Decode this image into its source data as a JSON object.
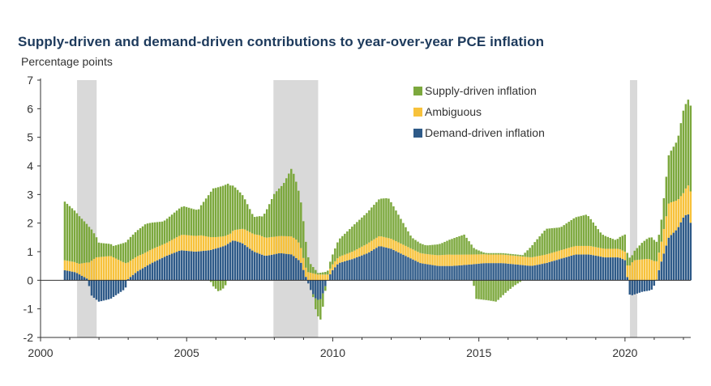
{
  "chart_data": {
    "type": "bar",
    "stacked": true,
    "title": "Supply-driven and demand-driven contributions to year-over-year PCE inflation",
    "ylabel": "Percentage points",
    "xlabel": "",
    "ylim": [
      -2,
      7
    ],
    "xlim": [
      2000,
      2022.25
    ],
    "yticks": [
      7,
      6,
      5,
      4,
      3,
      2,
      1,
      0,
      -1,
      -2
    ],
    "xticks": [
      2000,
      2005,
      2010,
      2015,
      2020
    ],
    "grid": false,
    "legend": "top-right",
    "recessions": [
      [
        2001.25,
        2001.92
      ],
      [
        2007.97,
        2009.5
      ],
      [
        2020.17,
        2020.42
      ]
    ],
    "frequency": "monthly",
    "start": 2000.83,
    "series": [
      {
        "name": "Demand-driven inflation",
        "color": "#2e5a88",
        "anchors": [
          [
            2000.83,
            0.35
          ],
          [
            2001.2,
            0.28
          ],
          [
            2001.6,
            0.05
          ],
          [
            2001.75,
            -0.55
          ],
          [
            2002.0,
            -0.75
          ],
          [
            2002.4,
            -0.65
          ],
          [
            2002.9,
            -0.3
          ],
          [
            2003.0,
            0.05
          ],
          [
            2003.3,
            0.3
          ],
          [
            2003.8,
            0.6
          ],
          [
            2004.3,
            0.85
          ],
          [
            2004.8,
            1.05
          ],
          [
            2005.3,
            1.0
          ],
          [
            2005.8,
            1.05
          ],
          [
            2006.3,
            1.2
          ],
          [
            2006.6,
            1.4
          ],
          [
            2006.9,
            1.3
          ],
          [
            2007.3,
            1.0
          ],
          [
            2007.7,
            0.85
          ],
          [
            2008.2,
            0.95
          ],
          [
            2008.6,
            0.9
          ],
          [
            2008.9,
            0.65
          ],
          [
            2009.05,
            0.2
          ],
          [
            2009.25,
            -0.35
          ],
          [
            2009.45,
            -0.7
          ],
          [
            2009.6,
            -0.65
          ],
          [
            2009.75,
            -0.2
          ],
          [
            2009.95,
            0.3
          ],
          [
            2010.2,
            0.6
          ],
          [
            2010.7,
            0.75
          ],
          [
            2011.2,
            0.95
          ],
          [
            2011.6,
            1.2
          ],
          [
            2012.0,
            1.1
          ],
          [
            2012.5,
            0.85
          ],
          [
            2013.0,
            0.6
          ],
          [
            2013.6,
            0.5
          ],
          [
            2014.1,
            0.5
          ],
          [
            2014.7,
            0.55
          ],
          [
            2015.2,
            0.6
          ],
          [
            2015.8,
            0.6
          ],
          [
            2016.3,
            0.55
          ],
          [
            2016.8,
            0.5
          ],
          [
            2017.3,
            0.6
          ],
          [
            2017.8,
            0.75
          ],
          [
            2018.3,
            0.9
          ],
          [
            2018.8,
            0.9
          ],
          [
            2019.3,
            0.8
          ],
          [
            2019.8,
            0.8
          ],
          [
            2020.0,
            0.7
          ],
          [
            2020.17,
            -0.55
          ],
          [
            2020.6,
            -0.4
          ],
          [
            2020.9,
            -0.35
          ],
          [
            2021.05,
            -0.1
          ],
          [
            2021.2,
            0.5
          ],
          [
            2021.5,
            1.5
          ],
          [
            2021.8,
            1.8
          ],
          [
            2022.0,
            2.2
          ],
          [
            2022.15,
            2.35
          ],
          [
            2022.25,
            2.0
          ]
        ]
      },
      {
        "name": "Ambiguous",
        "color": "#f7c23b",
        "anchors": [
          [
            2000.83,
            0.35
          ],
          [
            2001.3,
            0.35
          ],
          [
            2001.9,
            0.8
          ],
          [
            2002.4,
            0.85
          ],
          [
            2002.9,
            0.6
          ],
          [
            2003.5,
            0.5
          ],
          [
            2004.3,
            0.45
          ],
          [
            2004.9,
            0.55
          ],
          [
            2005.5,
            0.55
          ],
          [
            2006.0,
            0.4
          ],
          [
            2006.5,
            0.3
          ],
          [
            2007.0,
            0.55
          ],
          [
            2007.5,
            0.65
          ],
          [
            2008.2,
            0.6
          ],
          [
            2008.8,
            0.65
          ],
          [
            2009.1,
            0.3
          ],
          [
            2009.5,
            0.2
          ],
          [
            2010.0,
            0.2
          ],
          [
            2010.6,
            0.25
          ],
          [
            2011.3,
            0.35
          ],
          [
            2011.9,
            0.35
          ],
          [
            2012.5,
            0.35
          ],
          [
            2013.2,
            0.35
          ],
          [
            2014.0,
            0.4
          ],
          [
            2014.7,
            0.35
          ],
          [
            2015.3,
            0.3
          ],
          [
            2016.0,
            0.3
          ],
          [
            2016.7,
            0.3
          ],
          [
            2017.3,
            0.3
          ],
          [
            2018.0,
            0.3
          ],
          [
            2018.8,
            0.3
          ],
          [
            2019.5,
            0.3
          ],
          [
            2020.0,
            0.3
          ],
          [
            2020.3,
            0.7
          ],
          [
            2020.8,
            0.75
          ],
          [
            2021.2,
            0.6
          ],
          [
            2021.5,
            1.2
          ],
          [
            2021.8,
            1.0
          ],
          [
            2022.0,
            0.85
          ],
          [
            2022.25,
            1.1
          ]
        ]
      },
      {
        "name": "Supply-driven inflation",
        "color": "#7ca83d",
        "anchors": [
          [
            2000.83,
            2.05
          ],
          [
            2001.3,
            1.7
          ],
          [
            2001.7,
            1.2
          ],
          [
            2002.0,
            0.5
          ],
          [
            2002.5,
            0.4
          ],
          [
            2003.0,
            0.8
          ],
          [
            2003.6,
            1.0
          ],
          [
            2004.2,
            0.8
          ],
          [
            2004.9,
            1.0
          ],
          [
            2005.4,
            0.9
          ],
          [
            2005.9,
            1.7
          ],
          [
            2006.4,
            1.8
          ],
          [
            2006.9,
            1.2
          ],
          [
            2007.3,
            0.6
          ],
          [
            2007.6,
            0.7
          ],
          [
            2008.0,
            1.5
          ],
          [
            2008.3,
            1.8
          ],
          [
            2008.6,
            2.4
          ],
          [
            2008.95,
            1.5
          ],
          [
            2009.2,
            0.35
          ],
          [
            2009.5,
            0.05
          ],
          [
            2009.8,
            0.1
          ],
          [
            2010.2,
            0.6
          ],
          [
            2010.7,
            0.9
          ],
          [
            2011.2,
            1.1
          ],
          [
            2011.6,
            1.3
          ],
          [
            2011.9,
            1.4
          ],
          [
            2012.3,
            0.9
          ],
          [
            2012.7,
            0.4
          ],
          [
            2013.2,
            0.3
          ],
          [
            2013.7,
            0.4
          ],
          [
            2014.2,
            0.6
          ],
          [
            2014.5,
            0.7
          ],
          [
            2014.85,
            0.2
          ],
          [
            2015.2,
            0.05
          ],
          [
            2015.8,
            0.05
          ],
          [
            2016.5,
            0.05
          ],
          [
            2016.9,
            0.5
          ],
          [
            2017.3,
            0.9
          ],
          [
            2017.8,
            0.8
          ],
          [
            2018.3,
            1.0
          ],
          [
            2018.7,
            1.1
          ],
          [
            2019.2,
            0.5
          ],
          [
            2019.7,
            0.3
          ],
          [
            2020.0,
            0.6
          ],
          [
            2020.2,
            0.2
          ],
          [
            2020.6,
            0.6
          ],
          [
            2020.9,
            0.8
          ],
          [
            2021.2,
            0.6
          ],
          [
            2021.5,
            1.7
          ],
          [
            2021.8,
            2.1
          ],
          [
            2022.0,
            2.9
          ],
          [
            2022.15,
            3.0
          ],
          [
            2022.25,
            3.0
          ]
        ]
      },
      {
        "name": "Supply-driven inflation (negative)",
        "color": "#7ca83d",
        "anchors": [
          [
            2000.83,
            0.0
          ],
          [
            2005.8,
            0.0
          ],
          [
            2005.9,
            -0.2
          ],
          [
            2006.1,
            -0.4
          ],
          [
            2006.3,
            -0.25
          ],
          [
            2006.4,
            0.0
          ],
          [
            2009.3,
            0.0
          ],
          [
            2009.45,
            -0.5
          ],
          [
            2009.6,
            -0.75
          ],
          [
            2009.7,
            -0.3
          ],
          [
            2009.8,
            0.0
          ],
          [
            2014.8,
            0.0
          ],
          [
            2014.9,
            -0.65
          ],
          [
            2015.3,
            -0.7
          ],
          [
            2015.6,
            -0.75
          ],
          [
            2015.9,
            -0.45
          ],
          [
            2016.2,
            -0.2
          ],
          [
            2016.5,
            0.0
          ],
          [
            2022.25,
            0.0
          ]
        ]
      }
    ]
  }
}
